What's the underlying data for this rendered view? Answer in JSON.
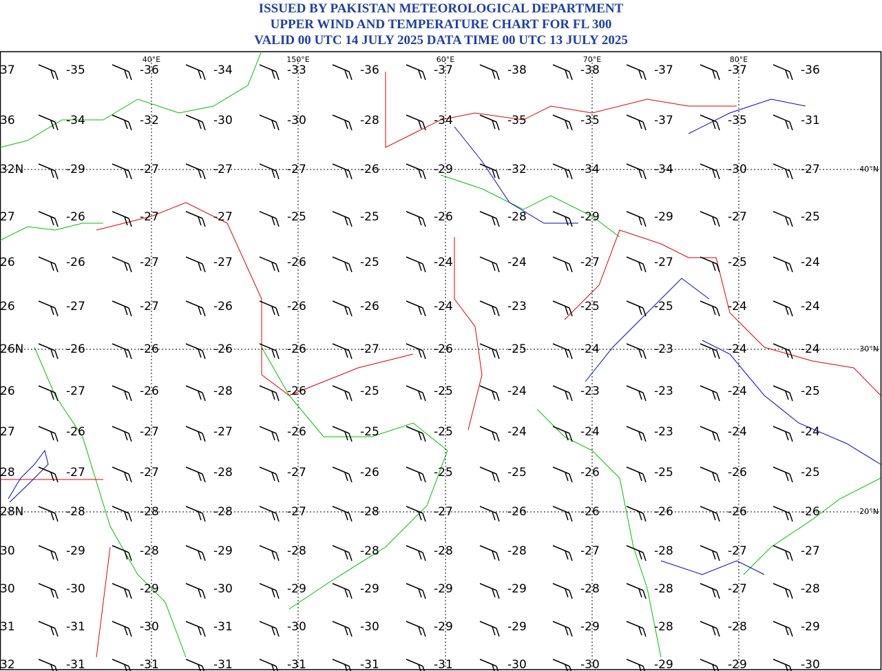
{
  "header": {
    "lines": [
      "ISSUED BY PAKISTAN METEOROLOGICAL DEPARTMENT",
      "UPPER WIND AND TEMPERATURE CHART FOR FL 300",
      "VALID 00 UTC 14 JULY 2025 DATA TIME 00 UTC 13 JULY 2025"
    ]
  },
  "map": {
    "longitude_labels": [
      "40°E",
      "150°E",
      "60°E",
      "70°E",
      "80°E"
    ],
    "latitude_labels": [
      "40°N",
      "30°N",
      "20°N"
    ],
    "left_edge": [
      "37",
      "36",
      "32N",
      "27",
      "26",
      "26",
      "26N",
      "26",
      "27",
      "28",
      "28N",
      "30",
      "30",
      "31",
      "32"
    ],
    "temperatures": [
      [
        -35,
        -36,
        -34,
        -33,
        -36,
        -37,
        -38,
        -38,
        -37,
        -37,
        -36
      ],
      [
        -34,
        -32,
        -30,
        -30,
        -28,
        -34,
        -35,
        -35,
        -37,
        -35,
        -31
      ],
      [
        -29,
        -27,
        -27,
        -27,
        -26,
        -29,
        -32,
        -34,
        -34,
        -30,
        -27
      ],
      [
        -26,
        -27,
        -27,
        -25,
        -25,
        -26,
        -28,
        -29,
        -29,
        -27,
        -25
      ],
      [
        -26,
        -27,
        -27,
        -26,
        -25,
        -24,
        -24,
        -27,
        -27,
        -25,
        -24
      ],
      [
        -27,
        -27,
        -26,
        -26,
        -26,
        -24,
        -23,
        -25,
        -25,
        -24,
        -24
      ],
      [
        -26,
        -26,
        -26,
        -26,
        -27,
        -26,
        -25,
        -24,
        -23,
        -24,
        -24
      ],
      [
        -27,
        -26,
        -28,
        -26,
        -25,
        -25,
        -24,
        -23,
        -23,
        -24,
        -25
      ],
      [
        -26,
        -27,
        -27,
        -26,
        -25,
        -25,
        -24,
        -24,
        -23,
        -24,
        -24
      ],
      [
        -27,
        -27,
        -28,
        -27,
        -26,
        -25,
        -25,
        -26,
        -25,
        -26,
        -25
      ],
      [
        -28,
        -28,
        -28,
        -27,
        -28,
        -27,
        -26,
        -26,
        -26,
        -26,
        -26
      ],
      [
        -29,
        -28,
        -29,
        -28,
        -28,
        -28,
        -28,
        -27,
        -28,
        -27,
        -27
      ],
      [
        -30,
        -29,
        -30,
        -29,
        -29,
        -29,
        -29,
        -28,
        -28,
        -27,
        -28
      ],
      [
        -31,
        -30,
        -31,
        -30,
        -30,
        -29,
        -29,
        -29,
        -28,
        -28,
        -29
      ],
      [
        -31,
        -31,
        -31,
        -31,
        -31,
        -31,
        -30,
        -30,
        -29,
        -29,
        -30
      ]
    ]
  }
}
